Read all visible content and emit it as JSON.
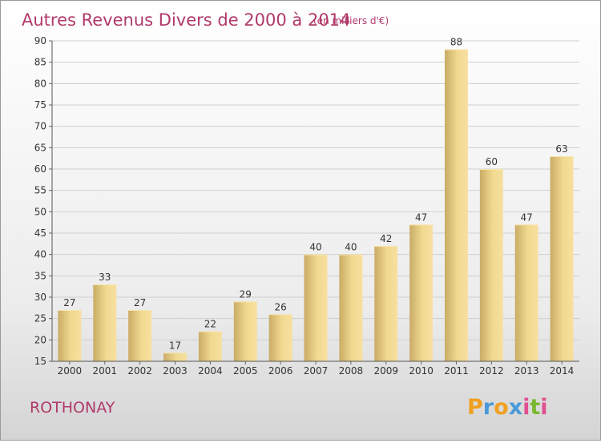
{
  "chart_data": {
    "type": "bar",
    "title": "Autres Revenus Divers de 2000 à 2014",
    "subtitle": "(en milliers d'€)",
    "categories": [
      "2000",
      "2001",
      "2002",
      "2003",
      "2004",
      "2005",
      "2006",
      "2007",
      "2008",
      "2009",
      "2010",
      "2011",
      "2012",
      "2013",
      "2014"
    ],
    "values": [
      27,
      33,
      27,
      17,
      22,
      29,
      26,
      40,
      40,
      42,
      47,
      88,
      60,
      47,
      63
    ],
    "ylim": [
      15,
      90
    ],
    "yticks": [
      15,
      20,
      25,
      30,
      35,
      40,
      45,
      50,
      55,
      60,
      65,
      70,
      75,
      80,
      85,
      90
    ],
    "grid": true,
    "xlabel": "",
    "ylabel": "",
    "colors": {
      "bar_light": "#f5dc96",
      "bar_dark": "#c8aa62",
      "title": "#b03a6a"
    }
  },
  "location": "ROTHONAY",
  "brand": {
    "letters": [
      "P",
      "r",
      "o",
      "x",
      "i",
      "t",
      "i"
    ],
    "colors": [
      "#f0a020",
      "#4a9ad8",
      "#f0a020",
      "#4a9ad8",
      "#e05090",
      "#7ab830",
      "#e05090"
    ]
  }
}
